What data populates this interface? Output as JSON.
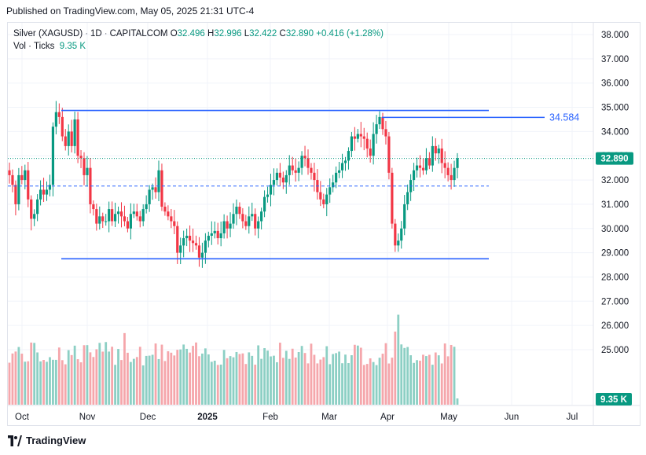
{
  "header": {
    "published": "Published on TradingView.com, May 05, 2025 21:31 UTC-4"
  },
  "legend": {
    "symbol": "Silver (XAGUSD)",
    "interval": "1D",
    "source": "CAPITALCOM",
    "open_label": "O",
    "open": "32.496",
    "high_label": "H",
    "high": "32.996",
    "low_label": "L",
    "low": "32.422",
    "close_label": "C",
    "close": "32.890",
    "change": "+0.416 (+1.28%)",
    "volume_label": "Vol · Ticks",
    "volume": "9.35 K"
  },
  "footer": {
    "brand": "TradingView"
  },
  "colors": {
    "up": "#089981",
    "down": "#f23645",
    "up_vol": "#8ccfc4",
    "down_vol": "#f5a6ab",
    "line": "#2962ff",
    "level_label": "#2962ff"
  },
  "chart_data": {
    "type": "candlestick",
    "title": "Silver (XAGUSD) · 1D · CAPITALCOM",
    "x_tick_labels": [
      "Oct",
      "Nov",
      "Dec",
      "2025",
      "Feb",
      "Mar",
      "Apr",
      "May",
      "Jun",
      "Jul"
    ],
    "y_tick_labels": [
      "38.000",
      "37.000",
      "36.000",
      "35.000",
      "34.000",
      "33.000",
      "32.000",
      "31.000",
      "30.000",
      "29.000",
      "28.000",
      "27.000",
      "26.000",
      "25.000"
    ],
    "price_range": [
      24.7,
      38.5
    ],
    "last_price": "32.890",
    "last_volume": "9.35 K",
    "levels": [
      {
        "name": "resistance",
        "value": 34.87,
        "label": ""
      },
      {
        "name": "mid-range",
        "value": 31.75,
        "label": "",
        "dashed": true
      },
      {
        "name": "support",
        "value": 28.75,
        "label": ""
      },
      {
        "name": "marked-level",
        "value": 34.584,
        "label": "34.584"
      }
    ],
    "closes": [
      32.2,
      31.8,
      31.0,
      32.2,
      32.0,
      32.4,
      31.2,
      30.4,
      30.6,
      31.2,
      31.6,
      31.4,
      31.6,
      31.8,
      34.2,
      34.8,
      34.6,
      33.8,
      33.4,
      34.0,
      33.4,
      34.5,
      33.0,
      32.9,
      32.2,
      32.5,
      31.0,
      30.8,
      30.2,
      30.5,
      30.3,
      30.3,
      30.8,
      30.3,
      30.6,
      30.7,
      30.5,
      30.3,
      30.0,
      30.6,
      30.7,
      30.5,
      30.3,
      30.8,
      31.0,
      31.6,
      31.7,
      31.5,
      32.4,
      30.9,
      30.7,
      30.5,
      30.3,
      30.1,
      29.0,
      29.3,
      29.6,
      29.7,
      29.5,
      29.4,
      29.3,
      28.8,
      29.0,
      29.5,
      29.7,
      29.8,
      29.9,
      29.6,
      29.8,
      30.3,
      30.0,
      30.2,
      30.6,
      30.9,
      30.6,
      30.3,
      30.1,
      30.5,
      30.6,
      30.0,
      30.3,
      30.7,
      31.3,
      31.4,
      31.8,
      32.0,
      32.3,
      32.1,
      31.9,
      32.2,
      32.6,
      32.4,
      32.3,
      32.5,
      33.0,
      32.9,
      32.5,
      32.3,
      32.0,
      31.5,
      31.2,
      31.0,
      31.4,
      31.7,
      31.9,
      32.3,
      32.4,
      32.7,
      32.8,
      33.2,
      33.8,
      33.7,
      33.9,
      33.8,
      33.7,
      33.3,
      33.0,
      33.9,
      34.3,
      34.6,
      34.1,
      33.8,
      32.3,
      30.2,
      29.3,
      29.5,
      30.0,
      31.0,
      31.5,
      32.0,
      32.4,
      32.6,
      32.5,
      32.4,
      32.9,
      32.6,
      33.4,
      33.1,
      33.3,
      32.7,
      32.5,
      32.2,
      32.0,
      32.5,
      32.9
    ]
  }
}
